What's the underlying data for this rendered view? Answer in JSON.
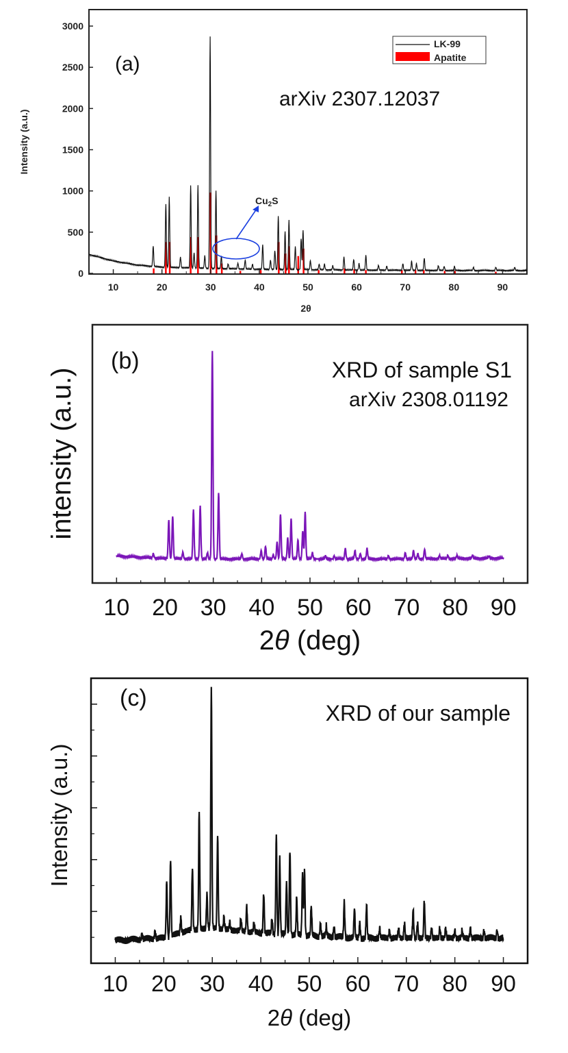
{
  "chart_data": [
    {
      "type": "line",
      "panel_label": "(a)",
      "annotation": "arXiv 2307.12037",
      "xlabel": "2θ",
      "ylabel": "Intensity (a.u.)",
      "xlim": [
        5,
        95
      ],
      "ylim": [
        0,
        3200
      ],
      "x_ticks": [
        "10",
        "20",
        "30",
        "40",
        "50",
        "60",
        "70",
        "80",
        "90"
      ],
      "y_ticks": [
        "0",
        "500",
        "1000",
        "1500",
        "2000",
        "2500",
        "3000"
      ],
      "legend": {
        "position": "top-right",
        "entries": [
          "LK-99",
          "Apatite"
        ]
      },
      "callout": {
        "label": "Cu2S",
        "label_main": "Cu",
        "label_sub": "2",
        "label_tail": "S",
        "region_2theta": [
          32,
          39
        ]
      },
      "colors": {
        "line": "#111111",
        "reference": "#ff0000",
        "callout": "#1a3fe0"
      },
      "series": [
        {
          "name": "LK-99",
          "background": [
            [
              5,
              230
            ],
            [
              10,
              150
            ],
            [
              15,
              100
            ],
            [
              20,
              75
            ],
            [
              30,
              60
            ],
            [
              40,
              50
            ],
            [
              60,
              40
            ],
            [
              80,
              35
            ],
            [
              95,
              35
            ]
          ],
          "peaks": [
            [
              18.2,
              250
            ],
            [
              20.8,
              770
            ],
            [
              21.5,
              850
            ],
            [
              23.8,
              130
            ],
            [
              25.9,
              1000
            ],
            [
              26.6,
              180
            ],
            [
              27.4,
              1000
            ],
            [
              28.8,
              150
            ],
            [
              29.9,
              2820
            ],
            [
              31.1,
              940
            ],
            [
              32.2,
              150
            ],
            [
              33.6,
              60
            ],
            [
              35.6,
              70
            ],
            [
              37.1,
              110
            ],
            [
              38.6,
              60
            ],
            [
              40.7,
              300
            ],
            [
              42.3,
              110
            ],
            [
              43.2,
              230
            ],
            [
              43.9,
              650
            ],
            [
              45.3,
              460
            ],
            [
              46.1,
              600
            ],
            [
              47.4,
              280
            ],
            [
              48.6,
              380
            ],
            [
              49.0,
              480
            ],
            [
              50.5,
              110
            ],
            [
              52.3,
              70
            ],
            [
              53.4,
              70
            ],
            [
              55.1,
              50
            ],
            [
              57.4,
              160
            ],
            [
              59.4,
              130
            ],
            [
              60.5,
              80
            ],
            [
              61.9,
              180
            ],
            [
              64.5,
              60
            ],
            [
              66.2,
              50
            ],
            [
              69.5,
              80
            ],
            [
              71.3,
              110
            ],
            [
              72.3,
              80
            ],
            [
              73.9,
              150
            ],
            [
              76.8,
              60
            ],
            [
              78.0,
              50
            ],
            [
              80.1,
              50
            ],
            [
              84.0,
              40
            ],
            [
              88.6,
              40
            ],
            [
              92.5,
              40
            ]
          ]
        },
        {
          "name": "Apatite",
          "type": "stick",
          "sticks": [
            [
              18.3,
              60
            ],
            [
              20.8,
              380
            ],
            [
              21.6,
              380
            ],
            [
              25.9,
              440
            ],
            [
              27.4,
              440
            ],
            [
              30.0,
              980
            ],
            [
              31.2,
              460
            ],
            [
              32.3,
              120
            ],
            [
              36.1,
              30
            ],
            [
              40.3,
              40
            ],
            [
              44.0,
              380
            ],
            [
              45.4,
              240
            ],
            [
              46.1,
              330
            ],
            [
              48.0,
              210
            ],
            [
              49.1,
              300
            ],
            [
              52.2,
              40
            ],
            [
              57.5,
              60
            ],
            [
              59.5,
              50
            ],
            [
              61.9,
              40
            ],
            [
              69.3,
              40
            ],
            [
              72.1,
              40
            ],
            [
              73.8,
              40
            ],
            [
              78.1,
              30
            ],
            [
              80.2,
              30
            ],
            [
              88.6,
              20
            ]
          ]
        }
      ]
    },
    {
      "type": "line",
      "panel_label": "(b)",
      "annotation_lines": [
        "XRD of sample S1",
        "arXiv 2308.01192"
      ],
      "xlabel_main": "2",
      "xlabel_symbol": "θ",
      "xlabel_unit": " (deg)",
      "ylabel": "intensity (a.u.)",
      "xlim": [
        5,
        95
      ],
      "ylim": [
        0,
        100
      ],
      "x_ticks": [
        "10",
        "20",
        "30",
        "40",
        "50",
        "60",
        "70",
        "80",
        "90"
      ],
      "colors": {
        "line": "#7b16b8"
      },
      "series": [
        {
          "name": "Sample S1",
          "x_range": [
            10,
            90
          ],
          "background": [
            [
              10,
              3.2
            ],
            [
              20,
              2.0
            ],
            [
              30,
              1.8
            ],
            [
              50,
              1.8
            ],
            [
              70,
              1.8
            ],
            [
              90,
              2.2
            ]
          ],
          "peaks": [
            [
              17.6,
              2.0
            ],
            [
              20.8,
              18.0
            ],
            [
              21.6,
              20.0
            ],
            [
              23.7,
              3.0
            ],
            [
              25.9,
              23.0
            ],
            [
              27.3,
              25.0
            ],
            [
              28.8,
              3.0
            ],
            [
              29.8,
              98.0
            ],
            [
              31.1,
              31.0
            ],
            [
              35.9,
              2.5
            ],
            [
              39.9,
              4.0
            ],
            [
              40.8,
              6.0
            ],
            [
              42.4,
              2.0
            ],
            [
              43.2,
              8.0
            ],
            [
              43.9,
              21.0
            ],
            [
              45.4,
              10.0
            ],
            [
              46.1,
              19.0
            ],
            [
              47.5,
              9.0
            ],
            [
              48.5,
              13.0
            ],
            [
              49.0,
              22.0
            ],
            [
              50.5,
              3.0
            ],
            [
              53.2,
              1.5
            ],
            [
              55.0,
              1.5
            ],
            [
              57.3,
              5.0
            ],
            [
              59.3,
              4.0
            ],
            [
              60.4,
              2.5
            ],
            [
              61.8,
              5.0
            ],
            [
              66.2,
              1.5
            ],
            [
              69.7,
              3.0
            ],
            [
              71.4,
              4.0
            ],
            [
              72.3,
              2.5
            ],
            [
              73.7,
              4.5
            ],
            [
              76.8,
              1.5
            ],
            [
              78.5,
              1.5
            ],
            [
              80.4,
              1.5
            ],
            [
              83.6,
              1.5
            ],
            [
              87.0,
              1.0
            ]
          ]
        }
      ]
    },
    {
      "type": "line",
      "panel_label": "(c)",
      "annotation": "XRD of our sample",
      "xlabel_main": "2",
      "xlabel_symbol": "θ",
      "xlabel_unit": " (deg)",
      "ylabel": "Intensity (a.u.)",
      "xlim": [
        5,
        95
      ],
      "ylim": [
        0,
        100
      ],
      "x_ticks": [
        "10",
        "20",
        "30",
        "40",
        "50",
        "60",
        "70",
        "80",
        "90"
      ],
      "colors": {
        "line": "#111111"
      },
      "series": [
        {
          "name": "Our sample",
          "x_range": [
            10,
            90
          ],
          "background": [
            [
              10,
              7.0
            ],
            [
              20,
              8.0
            ],
            [
              25,
              11.0
            ],
            [
              30,
              12.0
            ],
            [
              40,
              10.0
            ],
            [
              50,
              9.0
            ],
            [
              60,
              8.0
            ],
            [
              70,
              8.0
            ],
            [
              90,
              8.0
            ]
          ],
          "peaks": [
            [
              15.5,
              2.0
            ],
            [
              18.2,
              3.0
            ],
            [
              20.6,
              22.0
            ],
            [
              21.4,
              30.0
            ],
            [
              23.5,
              6.0
            ],
            [
              25.9,
              25.0
            ],
            [
              27.3,
              47.0
            ],
            [
              28.9,
              14.0
            ],
            [
              29.8,
              96.0
            ],
            [
              31.1,
              37.0
            ],
            [
              32.4,
              5.0
            ],
            [
              33.6,
              3.0
            ],
            [
              35.9,
              5.0
            ],
            [
              37.1,
              10.0
            ],
            [
              38.6,
              4.0
            ],
            [
              40.6,
              16.0
            ],
            [
              42.3,
              6.0
            ],
            [
              43.2,
              39.0
            ],
            [
              43.9,
              30.0
            ],
            [
              45.3,
              21.0
            ],
            [
              46.0,
              34.0
            ],
            [
              47.4,
              15.0
            ],
            [
              48.6,
              24.0
            ],
            [
              49.0,
              26.0
            ],
            [
              50.4,
              12.0
            ],
            [
              52.3,
              5.0
            ],
            [
              53.5,
              4.0
            ],
            [
              55.1,
              4.0
            ],
            [
              57.2,
              14.0
            ],
            [
              59.3,
              12.0
            ],
            [
              60.4,
              6.0
            ],
            [
              61.8,
              13.0
            ],
            [
              64.5,
              4.0
            ],
            [
              66.5,
              3.0
            ],
            [
              68.4,
              4.0
            ],
            [
              69.6,
              6.0
            ],
            [
              71.4,
              11.0
            ],
            [
              72.3,
              6.0
            ],
            [
              73.7,
              15.0
            ],
            [
              75.2,
              4.0
            ],
            [
              76.9,
              4.0
            ],
            [
              78.1,
              4.0
            ],
            [
              80.0,
              3.0
            ],
            [
              81.5,
              3.0
            ],
            [
              83.2,
              4.0
            ],
            [
              86.0,
              3.0
            ],
            [
              88.7,
              3.0
            ]
          ]
        }
      ]
    }
  ]
}
